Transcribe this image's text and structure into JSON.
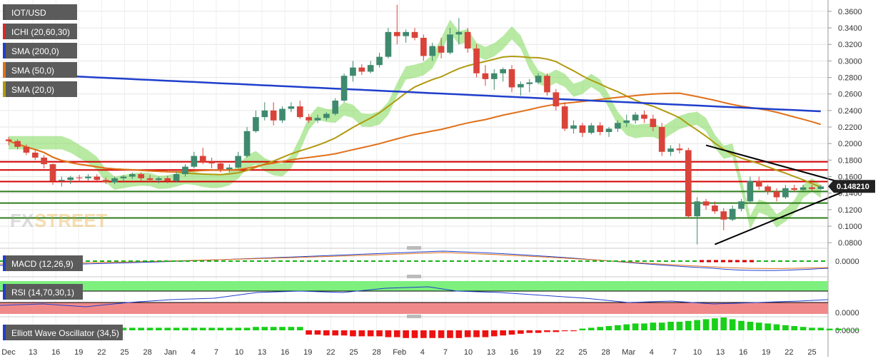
{
  "chart_data": {
    "type": "candlestick",
    "symbol": "IOT/USD",
    "current_price": "0.148210",
    "y_ticks": [
      "0.3600",
      "0.3400",
      "0.3200",
      "0.3000",
      "0.2800",
      "0.2600",
      "0.2400",
      "0.2200",
      "0.2000",
      "0.1800",
      "0.1600",
      "0.1400",
      "0.1200",
      "0.1000",
      "0.0800"
    ],
    "y_range": [
      0.075,
      0.372
    ],
    "x_ticks": [
      "Dec",
      "13",
      "16",
      "19",
      "22",
      "25",
      "28",
      "Jan",
      "4",
      "7",
      "10",
      "13",
      "16",
      "19",
      "22",
      "25",
      "28",
      "Feb",
      "4",
      "7",
      "10",
      "13",
      "16",
      "19",
      "22",
      "25",
      "28",
      "Mar",
      "4",
      "7",
      "10",
      "13",
      "16",
      "19",
      "22",
      "25"
    ],
    "indicators": [
      {
        "label": "ICHI (20,60,30)",
        "color": "#e02424"
      },
      {
        "label": "SMA (200,0)",
        "color": "#1f3fcc"
      },
      {
        "label": "SMA (50,0)",
        "color": "#e0701a"
      },
      {
        "label": "SMA (20,0)",
        "color": "#b09a10"
      }
    ],
    "candles": [
      [
        0.205,
        0.208,
        0.198,
        0.203
      ],
      [
        0.203,
        0.205,
        0.193,
        0.196
      ],
      [
        0.196,
        0.199,
        0.186,
        0.189
      ],
      [
        0.189,
        0.192,
        0.18,
        0.183
      ],
      [
        0.183,
        0.186,
        0.17,
        0.175
      ],
      [
        0.175,
        0.176,
        0.15,
        0.155
      ],
      [
        0.155,
        0.16,
        0.148,
        0.156
      ],
      [
        0.156,
        0.161,
        0.151,
        0.159
      ],
      [
        0.159,
        0.162,
        0.154,
        0.158
      ],
      [
        0.158,
        0.163,
        0.155,
        0.16
      ],
      [
        0.16,
        0.163,
        0.154,
        0.156
      ],
      [
        0.156,
        0.159,
        0.151,
        0.153
      ],
      [
        0.153,
        0.16,
        0.151,
        0.158
      ],
      [
        0.158,
        0.162,
        0.154,
        0.16
      ],
      [
        0.16,
        0.165,
        0.157,
        0.163
      ],
      [
        0.163,
        0.165,
        0.155,
        0.158
      ],
      [
        0.158,
        0.162,
        0.153,
        0.156
      ],
      [
        0.156,
        0.16,
        0.152,
        0.158
      ],
      [
        0.158,
        0.161,
        0.152,
        0.155
      ],
      [
        0.155,
        0.166,
        0.153,
        0.163
      ],
      [
        0.163,
        0.175,
        0.16,
        0.172
      ],
      [
        0.172,
        0.19,
        0.17,
        0.185
      ],
      [
        0.185,
        0.195,
        0.175,
        0.178
      ],
      [
        0.178,
        0.183,
        0.17,
        0.176
      ],
      [
        0.176,
        0.178,
        0.165,
        0.169
      ],
      [
        0.169,
        0.175,
        0.165,
        0.171
      ],
      [
        0.171,
        0.19,
        0.17,
        0.185
      ],
      [
        0.185,
        0.22,
        0.183,
        0.215
      ],
      [
        0.215,
        0.24,
        0.213,
        0.232
      ],
      [
        0.232,
        0.25,
        0.228,
        0.24
      ],
      [
        0.24,
        0.25,
        0.222,
        0.228
      ],
      [
        0.228,
        0.245,
        0.225,
        0.242
      ],
      [
        0.242,
        0.25,
        0.238,
        0.245
      ],
      [
        0.245,
        0.252,
        0.23,
        0.232
      ],
      [
        0.232,
        0.236,
        0.225,
        0.228
      ],
      [
        0.228,
        0.235,
        0.225,
        0.231
      ],
      [
        0.231,
        0.238,
        0.228,
        0.236
      ],
      [
        0.236,
        0.255,
        0.234,
        0.252
      ],
      [
        0.252,
        0.285,
        0.25,
        0.282
      ],
      [
        0.282,
        0.3,
        0.275,
        0.292
      ],
      [
        0.292,
        0.296,
        0.283,
        0.287
      ],
      [
        0.287,
        0.3,
        0.285,
        0.295
      ],
      [
        0.295,
        0.31,
        0.292,
        0.305
      ],
      [
        0.305,
        0.34,
        0.303,
        0.335
      ],
      [
        0.335,
        0.368,
        0.32,
        0.33
      ],
      [
        0.33,
        0.338,
        0.322,
        0.335
      ],
      [
        0.335,
        0.34,
        0.325,
        0.328
      ],
      [
        0.328,
        0.332,
        0.3,
        0.306
      ],
      [
        0.306,
        0.322,
        0.3,
        0.318
      ],
      [
        0.318,
        0.328,
        0.303,
        0.31
      ],
      [
        0.31,
        0.34,
        0.308,
        0.332
      ],
      [
        0.332,
        0.352,
        0.32,
        0.335
      ],
      [
        0.335,
        0.34,
        0.31,
        0.315
      ],
      [
        0.315,
        0.32,
        0.28,
        0.285
      ],
      [
        0.285,
        0.295,
        0.27,
        0.278
      ],
      [
        0.278,
        0.29,
        0.265,
        0.285
      ],
      [
        0.285,
        0.292,
        0.275,
        0.29
      ],
      [
        0.29,
        0.295,
        0.262,
        0.268
      ],
      [
        0.268,
        0.275,
        0.258,
        0.272
      ],
      [
        0.272,
        0.278,
        0.262,
        0.274
      ],
      [
        0.274,
        0.285,
        0.272,
        0.282
      ],
      [
        0.282,
        0.285,
        0.258,
        0.262
      ],
      [
        0.262,
        0.266,
        0.24,
        0.245
      ],
      [
        0.245,
        0.25,
        0.215,
        0.218
      ],
      [
        0.218,
        0.228,
        0.212,
        0.222
      ],
      [
        0.222,
        0.225,
        0.208,
        0.213
      ],
      [
        0.213,
        0.225,
        0.211,
        0.222
      ],
      [
        0.222,
        0.226,
        0.21,
        0.214
      ],
      [
        0.214,
        0.22,
        0.208,
        0.218
      ],
      [
        0.218,
        0.228,
        0.214,
        0.225
      ],
      [
        0.225,
        0.235,
        0.22,
        0.228
      ],
      [
        0.228,
        0.238,
        0.224,
        0.235
      ],
      [
        0.235,
        0.24,
        0.225,
        0.23
      ],
      [
        0.23,
        0.235,
        0.215,
        0.22
      ],
      [
        0.22,
        0.225,
        0.185,
        0.19
      ],
      [
        0.19,
        0.198,
        0.185,
        0.194
      ],
      [
        0.194,
        0.2,
        0.188,
        0.192
      ],
      [
        0.192,
        0.195,
        0.11,
        0.112
      ],
      [
        0.112,
        0.135,
        0.078,
        0.13
      ],
      [
        0.13,
        0.133,
        0.12,
        0.125
      ],
      [
        0.125,
        0.13,
        0.115,
        0.118
      ],
      [
        0.118,
        0.122,
        0.095,
        0.108
      ],
      [
        0.108,
        0.125,
        0.106,
        0.121
      ],
      [
        0.121,
        0.133,
        0.118,
        0.13
      ],
      [
        0.13,
        0.16,
        0.128,
        0.155
      ],
      [
        0.155,
        0.16,
        0.144,
        0.148
      ],
      [
        0.148,
        0.15,
        0.138,
        0.142
      ],
      [
        0.142,
        0.146,
        0.13,
        0.135
      ],
      [
        0.135,
        0.15,
        0.133,
        0.146
      ],
      [
        0.146,
        0.15,
        0.142,
        0.144
      ],
      [
        0.144,
        0.15,
        0.142,
        0.147
      ],
      [
        0.147,
        0.15,
        0.143,
        0.145
      ],
      [
        0.145,
        0.15,
        0.144,
        0.148
      ]
    ],
    "horizontal_levels": [
      {
        "price": 0.178,
        "color": "#d40000"
      },
      {
        "price": 0.168,
        "color": "#d40000"
      },
      {
        "price": 0.154,
        "color": "#d40000"
      },
      {
        "price": 0.142,
        "color": "#2e7d1a"
      },
      {
        "price": 0.128,
        "color": "#2e7d1a"
      },
      {
        "price": 0.11,
        "color": "#2e7d1a"
      }
    ],
    "trendlines": [
      {
        "from": [
          79,
          0.198
        ],
        "to": [
          96,
          0.148
        ]
      },
      {
        "from": [
          80,
          0.078
        ],
        "to": [
          96,
          0.148
        ]
      }
    ],
    "panels": [
      {
        "label": "MACD (12,26,9)",
        "tick": "0.0000"
      },
      {
        "label": "RSI (14,70,30,1)",
        "tick": "0.0000"
      },
      {
        "label": "Elliott Wave Oscillator (34,5)",
        "tick": "0.0000"
      }
    ],
    "ewo": [
      2,
      2,
      2,
      2,
      3,
      3,
      3,
      3,
      3,
      3,
      3,
      3,
      3,
      3,
      3,
      3,
      3,
      3,
      3,
      3,
      3,
      3,
      3,
      3,
      3,
      3,
      3,
      3,
      4,
      4,
      4,
      4,
      4,
      4,
      -5,
      -5,
      -6,
      -6,
      -6,
      -7,
      -7,
      -7,
      -7,
      -8,
      -8,
      -9,
      -9,
      -9,
      -9,
      -9,
      -9,
      -9,
      -8,
      -8,
      -8,
      -7,
      -6,
      -5,
      -4,
      -3,
      -3,
      -2,
      -2,
      -1,
      -1,
      2,
      3,
      4,
      5,
      6,
      7,
      8,
      8,
      9,
      9,
      10,
      10,
      11,
      12,
      13,
      14,
      15,
      13,
      11,
      10,
      9,
      8,
      7,
      6,
      5,
      4,
      3,
      3,
      2,
      2,
      1,
      1
    ],
    "logo_left": "FX",
    "logo_right": "STREET"
  }
}
